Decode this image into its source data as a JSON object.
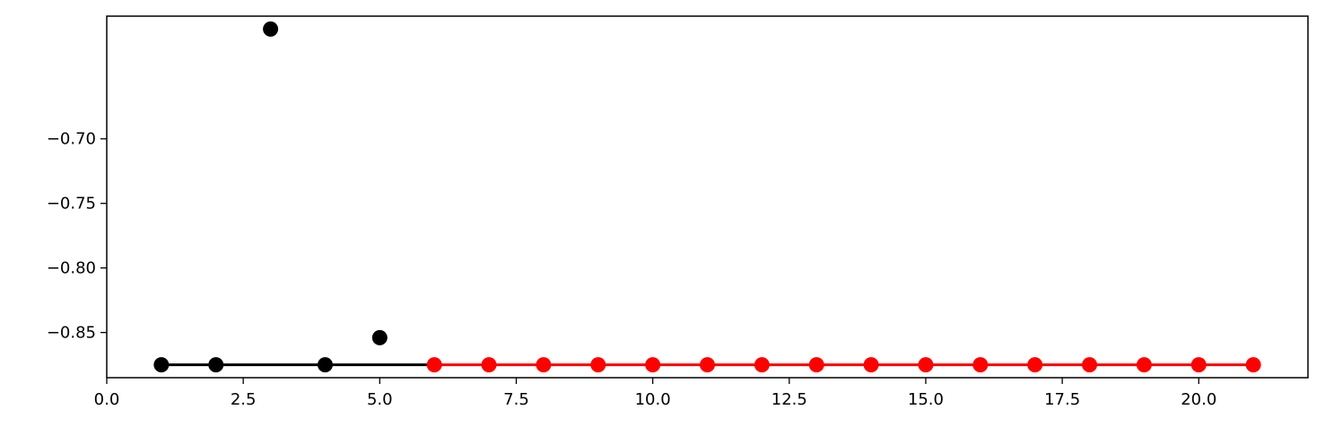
{
  "chart_data": {
    "type": "line",
    "title": "",
    "xlabel": "",
    "ylabel": "",
    "xlim": [
      0,
      22
    ],
    "ylim": [
      -0.885,
      -0.605
    ],
    "grid": false,
    "x_ticks": [
      0,
      2.5,
      5,
      7.5,
      10,
      12.5,
      15,
      17.5,
      20
    ],
    "x_tick_labels": [
      "0.0",
      "2.5",
      "5.0",
      "7.5",
      "10.0",
      "12.5",
      "15.0",
      "17.5",
      "20.0"
    ],
    "y_ticks": [
      -0.7,
      -0.75,
      -0.8,
      -0.85
    ],
    "y_tick_labels": [
      "−0.70",
      "−0.75",
      "−0.80",
      "−0.85"
    ],
    "colors": {
      "series_black": "#000000",
      "series_red": "#ff0000",
      "axes": "#000000"
    },
    "series": [
      {
        "points": [
          {
            "x": 1,
            "y": -0.875
          },
          {
            "x": 2,
            "y": -0.875
          },
          {
            "x": 3,
            "y": -0.615
          },
          {
            "x": 4,
            "y": -0.875
          },
          {
            "x": 5,
            "y": -0.854
          }
        ],
        "line": [
          {
            "x": 1,
            "y": -0.875
          },
          {
            "x": 6,
            "y": -0.875
          }
        ],
        "color": "#000000"
      },
      {
        "points": [
          {
            "x": 6,
            "y": -0.875
          },
          {
            "x": 7,
            "y": -0.875
          },
          {
            "x": 8,
            "y": -0.875
          },
          {
            "x": 9,
            "y": -0.875
          },
          {
            "x": 10,
            "y": -0.875
          },
          {
            "x": 11,
            "y": -0.875
          },
          {
            "x": 12,
            "y": -0.875
          },
          {
            "x": 13,
            "y": -0.875
          },
          {
            "x": 14,
            "y": -0.875
          },
          {
            "x": 15,
            "y": -0.875
          },
          {
            "x": 16,
            "y": -0.875
          },
          {
            "x": 17,
            "y": -0.875
          },
          {
            "x": 18,
            "y": -0.875
          },
          {
            "x": 19,
            "y": -0.875
          },
          {
            "x": 20,
            "y": -0.875
          },
          {
            "x": 21,
            "y": -0.875
          }
        ],
        "line": [
          {
            "x": 6,
            "y": -0.875
          },
          {
            "x": 21,
            "y": -0.875
          }
        ],
        "color": "#ff0000"
      }
    ]
  }
}
